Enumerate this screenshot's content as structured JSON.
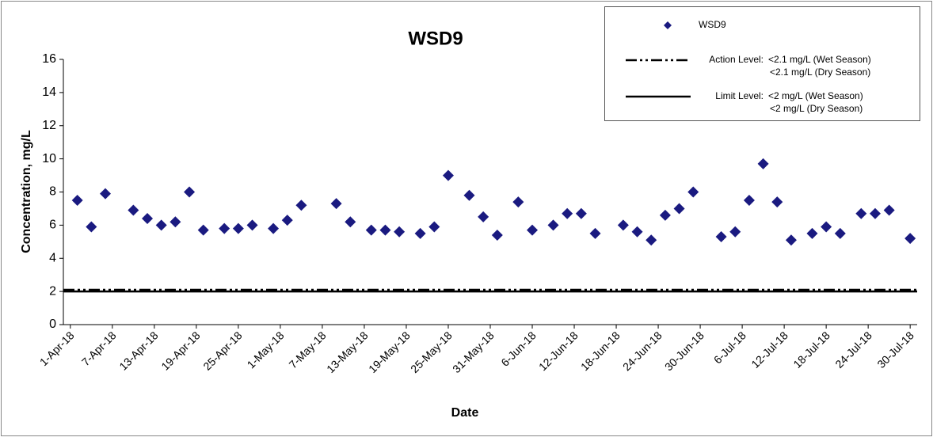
{
  "chart_data": {
    "type": "scatter",
    "title": "WSD9",
    "x_label": "Date",
    "y_label": "Concentration, mg/L",
    "series": [
      {
        "name": "WSD9",
        "color": "#1a1a80",
        "x": [
          "2018-04-02",
          "2018-04-04",
          "2018-04-06",
          "2018-04-10",
          "2018-04-12",
          "2018-04-14",
          "2018-04-16",
          "2018-04-18",
          "2018-04-20",
          "2018-04-23",
          "2018-04-25",
          "2018-04-27",
          "2018-04-30",
          "2018-05-02",
          "2018-05-04",
          "2018-05-09",
          "2018-05-11",
          "2018-05-14",
          "2018-05-16",
          "2018-05-18",
          "2018-05-21",
          "2018-05-23",
          "2018-05-25",
          "2018-05-28",
          "2018-05-30",
          "2018-06-01",
          "2018-06-04",
          "2018-06-06",
          "2018-06-09",
          "2018-06-11",
          "2018-06-13",
          "2018-06-15",
          "2018-06-19",
          "2018-06-21",
          "2018-06-23",
          "2018-06-25",
          "2018-06-27",
          "2018-06-29",
          "2018-07-03",
          "2018-07-05",
          "2018-07-07",
          "2018-07-09",
          "2018-07-11",
          "2018-07-13",
          "2018-07-16",
          "2018-07-18",
          "2018-07-20",
          "2018-07-23",
          "2018-07-25",
          "2018-07-27",
          "2018-07-30"
        ],
        "values": [
          7.5,
          5.9,
          7.9,
          6.9,
          6.4,
          6.0,
          6.2,
          8.0,
          5.7,
          5.8,
          5.8,
          6.0,
          5.8,
          6.3,
          7.2,
          7.3,
          6.2,
          5.7,
          5.7,
          5.6,
          5.5,
          5.9,
          9.0,
          7.8,
          6.5,
          5.4,
          7.4,
          5.7,
          6.0,
          6.7,
          6.7,
          5.5,
          6.0,
          5.6,
          5.1,
          6.6,
          7.0,
          8.0,
          5.3,
          5.6,
          7.5,
          9.7,
          7.4,
          5.1,
          5.5,
          5.9,
          5.5,
          6.7,
          6.7,
          6.9,
          5.2
        ]
      }
    ],
    "reference_lines": [
      {
        "label": "Action Level:",
        "value": 2.1,
        "dash": "dashdot",
        "wet": "<2.1 mg/L (Wet Season)",
        "dry": "<2.1 mg/L (Dry Season)"
      },
      {
        "label": "Limit Level:",
        "value": 2,
        "dash": "solid",
        "wet": "<2 mg/L (Wet Season)",
        "dry": "<2 mg/L (Dry Season)"
      }
    ],
    "xlim": [
      "2018-03-31",
      "2018-07-31"
    ],
    "xticks": [
      {
        "value": "2018-04-01",
        "label": "1-Apr-18"
      },
      {
        "value": "2018-04-07",
        "label": "7-Apr-18"
      },
      {
        "value": "2018-04-13",
        "label": "13-Apr-18"
      },
      {
        "value": "2018-04-19",
        "label": "19-Apr-18"
      },
      {
        "value": "2018-04-25",
        "label": "25-Apr-18"
      },
      {
        "value": "2018-05-01",
        "label": "1-May-18"
      },
      {
        "value": "2018-05-07",
        "label": "7-May-18"
      },
      {
        "value": "2018-05-13",
        "label": "13-May-18"
      },
      {
        "value": "2018-05-19",
        "label": "19-May-18"
      },
      {
        "value": "2018-05-25",
        "label": "25-May-18"
      },
      {
        "value": "2018-05-31",
        "label": "31-May-18"
      },
      {
        "value": "2018-06-06",
        "label": "6-Jun-18"
      },
      {
        "value": "2018-06-12",
        "label": "12-Jun-18"
      },
      {
        "value": "2018-06-18",
        "label": "18-Jun-18"
      },
      {
        "value": "2018-06-24",
        "label": "24-Jun-18"
      },
      {
        "value": "2018-06-30",
        "label": "30-Jun-18"
      },
      {
        "value": "2018-07-06",
        "label": "6-Jul-18"
      },
      {
        "value": "2018-07-12",
        "label": "12-Jul-18"
      },
      {
        "value": "2018-07-18",
        "label": "18-Jul-18"
      },
      {
        "value": "2018-07-24",
        "label": "24-Jul-18"
      },
      {
        "value": "2018-07-30",
        "label": "30-Jul-18"
      }
    ],
    "ylim": [
      0,
      16
    ],
    "yticks": [
      0,
      2,
      4,
      6,
      8,
      10,
      12,
      14,
      16
    ],
    "grid": false
  }
}
